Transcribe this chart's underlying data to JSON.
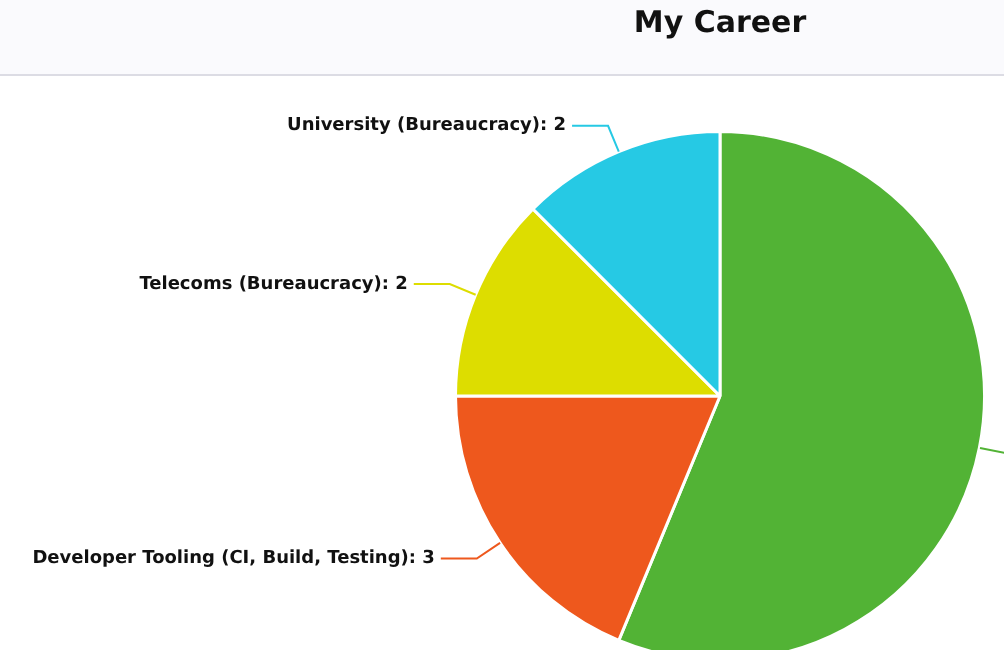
{
  "chart_data": {
    "type": "pie",
    "title": "My Career",
    "categories": [
      null,
      "Developer Tooling (CI, Build, Testing): 3",
      "Telecoms (Bureaucracy): 2",
      "University (Bureaucracy): 2"
    ],
    "values": [
      56.25,
      18.75,
      12.5,
      12.5
    ],
    "colors": [
      "#52b335",
      "#ee581d",
      "#dddd00",
      "#26c9e4"
    ],
    "legend": false
  }
}
